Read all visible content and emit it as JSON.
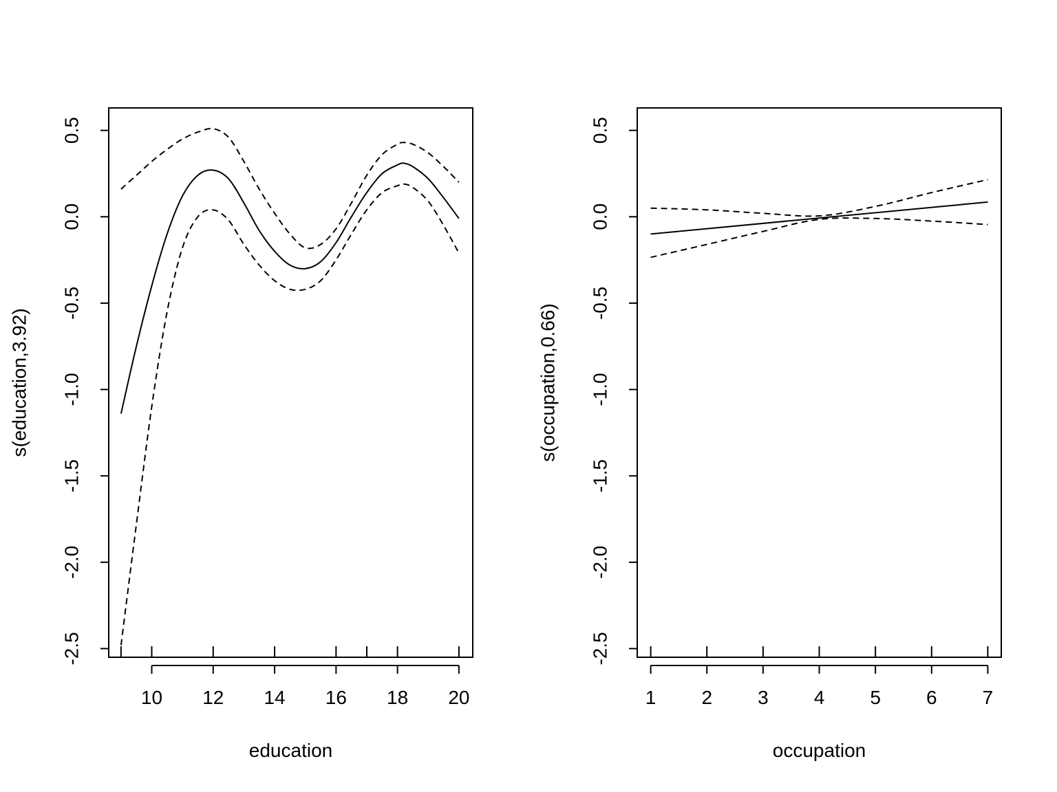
{
  "chart_data": [
    {
      "type": "line",
      "xlabel": "education",
      "ylabel": "s(education,3.92)",
      "xlim": [
        8.6,
        20.45
      ],
      "ylim": [
        -2.55,
        0.63
      ],
      "xticks": [
        10,
        12,
        14,
        16,
        18,
        20
      ],
      "xtick_labels": [
        "10",
        "12",
        "14",
        "16",
        "18",
        "20"
      ],
      "yticks": [
        0.5,
        0.0,
        -0.5,
        -1.0,
        -1.5,
        -2.0,
        -2.5
      ],
      "ytick_labels": [
        "0.5",
        "0.0",
        "-0.5",
        "-1.0",
        "-1.5",
        "-2.0",
        "-2.5"
      ],
      "rug": [
        9,
        10,
        12,
        14,
        16,
        17,
        18,
        20
      ],
      "grid": false,
      "series": [
        {
          "role": "fit",
          "x": [
            9,
            9.5,
            10,
            10.5,
            11,
            11.5,
            12,
            12.5,
            13,
            13.5,
            14,
            14.5,
            15,
            15.5,
            16,
            16.5,
            17,
            17.5,
            18,
            18.2,
            18.5,
            19,
            19.5,
            20
          ],
          "y": [
            -1.14,
            -0.75,
            -0.4,
            -0.1,
            0.12,
            0.24,
            0.27,
            0.22,
            0.08,
            -0.08,
            -0.2,
            -0.28,
            -0.3,
            -0.26,
            -0.15,
            0.0,
            0.14,
            0.25,
            0.3,
            0.31,
            0.29,
            0.22,
            0.11,
            -0.01
          ]
        },
        {
          "role": "upper",
          "x": [
            9,
            9.5,
            10,
            10.5,
            11,
            11.5,
            12,
            12.5,
            13,
            13.5,
            14,
            14.5,
            15,
            15.5,
            16,
            16.5,
            17,
            17.5,
            18,
            18.2,
            18.5,
            19,
            19.5,
            20
          ],
          "y": [
            0.16,
            0.24,
            0.32,
            0.39,
            0.45,
            0.49,
            0.51,
            0.46,
            0.32,
            0.16,
            0.02,
            -0.1,
            -0.18,
            -0.16,
            -0.07,
            0.08,
            0.24,
            0.36,
            0.42,
            0.43,
            0.42,
            0.37,
            0.29,
            0.2
          ]
        },
        {
          "role": "lower",
          "x": [
            9,
            9.5,
            10,
            10.5,
            11,
            11.5,
            12,
            12.5,
            13,
            13.5,
            14,
            14.5,
            15,
            15.5,
            16,
            16.5,
            17,
            17.5,
            18,
            18.2,
            18.5,
            19,
            19.5,
            20
          ],
          "y": [
            -2.48,
            -1.78,
            -1.1,
            -0.55,
            -0.18,
            0.0,
            0.04,
            -0.02,
            -0.16,
            -0.28,
            -0.37,
            -0.42,
            -0.42,
            -0.37,
            -0.25,
            -0.1,
            0.04,
            0.14,
            0.18,
            0.19,
            0.17,
            0.09,
            -0.05,
            -0.21
          ]
        }
      ]
    },
    {
      "type": "line",
      "xlabel": "occupation",
      "ylabel": "s(occupation,0.66)",
      "xlim": [
        0.76,
        7.24
      ],
      "ylim": [
        -2.55,
        0.63
      ],
      "xticks": [
        1,
        2,
        3,
        4,
        5,
        6,
        7
      ],
      "xtick_labels": [
        "1",
        "2",
        "3",
        "4",
        "5",
        "6",
        "7"
      ],
      "yticks": [
        0.5,
        0.0,
        -0.5,
        -1.0,
        -1.5,
        -2.0,
        -2.5
      ],
      "ytick_labels": [
        "0.5",
        "0.0",
        "-0.5",
        "-1.0",
        "-1.5",
        "-2.0",
        "-2.5"
      ],
      "rug": [
        1,
        2,
        3,
        4,
        5,
        6,
        7
      ],
      "grid": false,
      "series": [
        {
          "role": "fit",
          "x": [
            1,
            7
          ],
          "y": [
            -0.1,
            0.085
          ]
        },
        {
          "role": "upper",
          "x": [
            1,
            2,
            3,
            4,
            5,
            6,
            7
          ],
          "y": [
            0.05,
            0.04,
            0.02,
            0.005,
            0.06,
            0.14,
            0.215
          ]
        },
        {
          "role": "lower",
          "x": [
            1,
            2,
            3,
            4,
            5,
            6,
            7
          ],
          "y": [
            -0.235,
            -0.16,
            -0.085,
            -0.015,
            -0.01,
            -0.025,
            -0.045
          ]
        }
      ]
    }
  ]
}
